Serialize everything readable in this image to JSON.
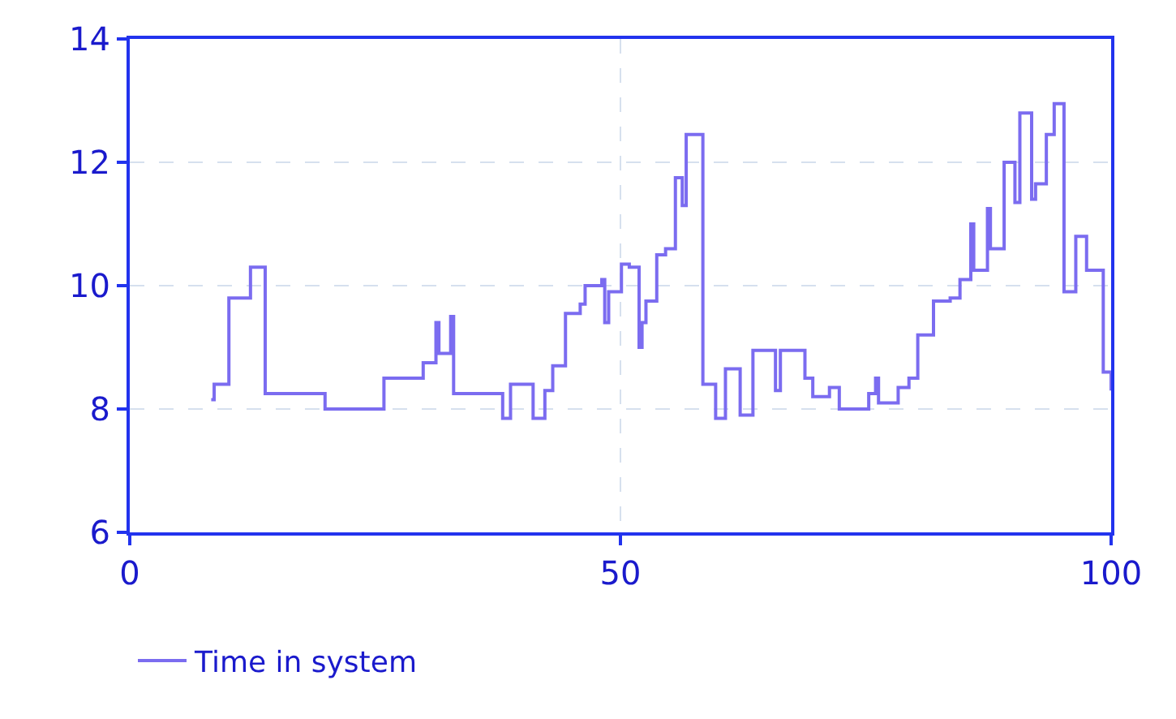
{
  "chart_data": {
    "type": "step",
    "x": [
      8.3,
      8.6,
      10.1,
      12.3,
      13.8,
      19.9,
      25.9,
      29.9,
      31.2,
      31.5,
      32.7,
      33.0,
      38.0,
      38.8,
      41.1,
      42.3,
      43.1,
      44.4,
      45.9,
      46.4,
      48.1,
      48.4,
      48.8,
      50.1,
      50.9,
      51.9,
      52.2,
      52.6,
      53.7,
      54.6,
      55.6,
      56.3,
      56.7,
      58.4,
      59.7,
      60.7,
      62.2,
      63.5,
      65.8,
      66.3,
      68.8,
      69.6,
      71.3,
      72.3,
      75.3,
      76.0,
      76.3,
      78.3,
      79.4,
      80.3,
      81.9,
      83.6,
      84.6,
      85.7,
      86.0,
      87.4,
      87.7,
      89.1,
      90.2,
      90.7,
      91.9,
      92.3,
      93.4,
      94.2,
      95.2,
      96.4,
      97.5,
      99.2,
      100
    ],
    "series": [
      {
        "name": "Time in system",
        "color": "#7b6cf0",
        "values": [
          8.15,
          8.4,
          9.8,
          10.3,
          8.25,
          8.0,
          8.5,
          8.75,
          9.4,
          8.9,
          9.5,
          8.25,
          7.85,
          8.4,
          7.85,
          8.3,
          8.7,
          9.55,
          9.7,
          10.0,
          10.1,
          9.4,
          9.9,
          10.35,
          10.3,
          9.0,
          9.4,
          9.75,
          10.5,
          10.6,
          11.75,
          11.3,
          12.45,
          8.4,
          7.85,
          8.65,
          7.9,
          8.95,
          8.3,
          8.95,
          8.5,
          8.2,
          8.35,
          8.0,
          8.25,
          8.5,
          8.1,
          8.35,
          8.5,
          9.2,
          9.75,
          9.8,
          10.1,
          11.0,
          10.25,
          11.25,
          10.6,
          12.0,
          11.35,
          12.8,
          11.4,
          11.65,
          12.45,
          12.95,
          9.9,
          10.8,
          10.25,
          8.6,
          8.3
        ]
      }
    ],
    "xlim": [
      0,
      100
    ],
    "xticks": [
      0,
      50,
      100
    ],
    "ylim": [
      6,
      14
    ],
    "yticks": [
      6,
      8,
      10,
      12,
      14
    ],
    "grid": true,
    "line_style": "solid",
    "legend": "bottom left"
  }
}
